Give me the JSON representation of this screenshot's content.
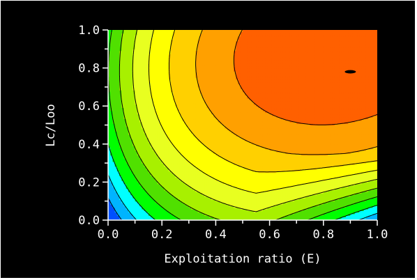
{
  "chart_data": {
    "type": "contour",
    "title": "",
    "xlabel": "Exploitation ratio (E)",
    "ylabel": "Lc/Loo",
    "xlim": [
      0.0,
      1.0
    ],
    "ylim": [
      0.0,
      1.0
    ],
    "x_ticks": [
      "0.0",
      "0.2",
      "0.4",
      "0.6",
      "0.8",
      "1.0"
    ],
    "y_ticks": [
      "0.0",
      "0.2",
      "0.4",
      "0.6",
      "0.8",
      "1.0"
    ],
    "grid": false,
    "legend": "none",
    "maximum": {
      "x": 0.9,
      "y": 0.78
    },
    "level_colors": [
      "#0050ff",
      "#00b4ff",
      "#00ffff",
      "#00ff00",
      "#50e000",
      "#a8f000",
      "#e8ff20",
      "#ffff00",
      "#ffd000",
      "#ffa000",
      "#ff6000"
    ],
    "lines_color": "#000000"
  }
}
